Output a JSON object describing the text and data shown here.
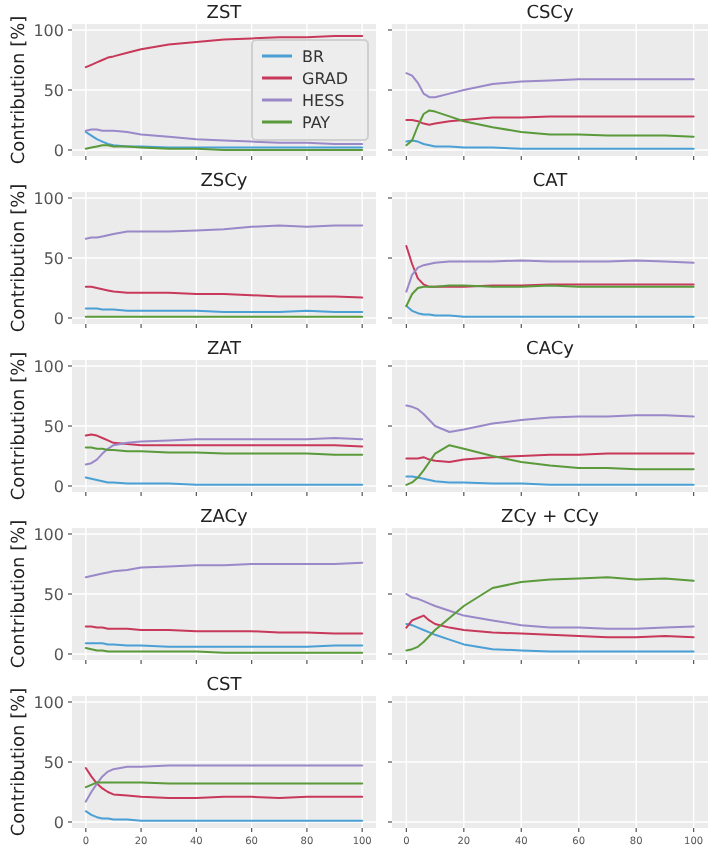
{
  "chart_data": [
    {
      "type": "line",
      "title": "ZST",
      "ylabel": "Contribution [%]",
      "x": [
        0,
        2,
        4,
        6,
        8,
        10,
        15,
        20,
        30,
        40,
        50,
        60,
        70,
        80,
        90,
        100
      ],
      "xlim": [
        -5,
        105
      ],
      "ylim": [
        -5,
        105
      ],
      "xticks": [
        0,
        20,
        40,
        60,
        80,
        100
      ],
      "yticks": [
        0,
        50,
        100
      ],
      "grid": true,
      "legend": "right",
      "tick_labels": "y",
      "series": [
        {
          "name": "BR",
          "color": "#4a9fd5",
          "values": [
            15,
            12,
            9,
            7,
            5,
            4,
            3,
            3,
            2,
            2,
            2,
            2,
            2,
            2,
            2,
            2
          ]
        },
        {
          "name": "GRAD",
          "color": "#c8385a",
          "values": [
            69,
            71,
            73,
            75,
            77,
            78,
            81,
            84,
            88,
            90,
            92,
            93,
            94,
            94,
            95,
            95
          ]
        },
        {
          "name": "HESS",
          "color": "#9a88c8",
          "values": [
            16,
            17,
            17,
            16,
            16,
            16,
            15,
            13,
            11,
            9,
            8,
            7,
            6,
            6,
            5,
            5
          ]
        },
        {
          "name": "PAY",
          "color": "#5a9a3a",
          "values": [
            1,
            2,
            3,
            4,
            4,
            3,
            3,
            2,
            1,
            1,
            0,
            0,
            0,
            0,
            0,
            0
          ]
        }
      ]
    },
    {
      "type": "line",
      "title": "CSCy",
      "x": [
        0,
        2,
        4,
        6,
        8,
        10,
        15,
        20,
        30,
        40,
        50,
        60,
        70,
        80,
        90,
        100
      ],
      "xlim": [
        -5,
        105
      ],
      "ylim": [
        -5,
        105
      ],
      "xticks": [
        0,
        20,
        40,
        60,
        80,
        100
      ],
      "yticks": [
        0,
        50,
        100
      ],
      "grid": true,
      "tick_labels": false,
      "series": [
        {
          "color": "#4a9fd5",
          "values": [
            7,
            8,
            7,
            5,
            4,
            3,
            3,
            2,
            2,
            1,
            1,
            1,
            1,
            1,
            1,
            1
          ]
        },
        {
          "color": "#c8385a",
          "values": [
            25,
            25,
            24,
            22,
            21,
            22,
            24,
            25,
            27,
            27,
            28,
            28,
            28,
            28,
            28,
            28
          ]
        },
        {
          "color": "#9a88c8",
          "values": [
            64,
            62,
            56,
            47,
            44,
            44,
            47,
            50,
            55,
            57,
            58,
            59,
            59,
            59,
            59,
            59
          ]
        },
        {
          "color": "#5a9a3a",
          "values": [
            4,
            8,
            20,
            30,
            33,
            32,
            28,
            24,
            19,
            15,
            13,
            13,
            12,
            12,
            12,
            11
          ]
        }
      ]
    },
    {
      "type": "line",
      "title": "ZSCy",
      "ylabel": "Contribution [%]",
      "x": [
        0,
        2,
        4,
        6,
        8,
        10,
        15,
        20,
        30,
        40,
        50,
        60,
        70,
        80,
        90,
        100
      ],
      "xlim": [
        -5,
        105
      ],
      "ylim": [
        -5,
        105
      ],
      "xticks": [
        0,
        20,
        40,
        60,
        80,
        100
      ],
      "yticks": [
        0,
        50,
        100
      ],
      "grid": true,
      "tick_labels": "y",
      "series": [
        {
          "color": "#4a9fd5",
          "values": [
            8,
            8,
            8,
            7,
            7,
            7,
            6,
            6,
            6,
            6,
            5,
            5,
            5,
            6,
            5,
            5
          ]
        },
        {
          "color": "#c8385a",
          "values": [
            26,
            26,
            25,
            24,
            23,
            22,
            21,
            21,
            21,
            20,
            20,
            19,
            18,
            18,
            18,
            17
          ]
        },
        {
          "color": "#9a88c8",
          "values": [
            66,
            67,
            67,
            68,
            69,
            70,
            72,
            72,
            72,
            73,
            74,
            76,
            77,
            76,
            77,
            77
          ]
        },
        {
          "color": "#5a9a3a",
          "values": [
            1,
            1,
            1,
            1,
            1,
            1,
            1,
            1,
            1,
            1,
            1,
            1,
            1,
            1,
            1,
            1
          ]
        }
      ]
    },
    {
      "type": "line",
      "title": "CAT",
      "x": [
        0,
        2,
        4,
        6,
        8,
        10,
        15,
        20,
        30,
        40,
        50,
        60,
        70,
        80,
        90,
        100
      ],
      "xlim": [
        -5,
        105
      ],
      "ylim": [
        -5,
        105
      ],
      "xticks": [
        0,
        20,
        40,
        60,
        80,
        100
      ],
      "yticks": [
        0,
        50,
        100
      ],
      "grid": true,
      "tick_labels": false,
      "series": [
        {
          "color": "#4a9fd5",
          "values": [
            10,
            6,
            4,
            3,
            3,
            2,
            2,
            1,
            1,
            1,
            1,
            1,
            1,
            1,
            1,
            1
          ]
        },
        {
          "color": "#c8385a",
          "values": [
            60,
            45,
            33,
            28,
            26,
            26,
            26,
            26,
            27,
            27,
            28,
            28,
            28,
            28,
            28,
            28
          ]
        },
        {
          "color": "#9a88c8",
          "values": [
            22,
            36,
            42,
            44,
            45,
            46,
            47,
            47,
            47,
            48,
            47,
            47,
            47,
            48,
            47,
            46
          ]
        },
        {
          "color": "#5a9a3a",
          "values": [
            10,
            20,
            25,
            26,
            26,
            26,
            27,
            27,
            26,
            26,
            27,
            26,
            26,
            26,
            26,
            26
          ]
        }
      ]
    },
    {
      "type": "line",
      "title": "ZAT",
      "ylabel": "Contribution [%]",
      "x": [
        0,
        2,
        4,
        6,
        8,
        10,
        15,
        20,
        30,
        40,
        50,
        60,
        70,
        80,
        90,
        100
      ],
      "xlim": [
        -5,
        105
      ],
      "ylim": [
        -5,
        105
      ],
      "xticks": [
        0,
        20,
        40,
        60,
        80,
        100
      ],
      "yticks": [
        0,
        50,
        100
      ],
      "grid": true,
      "tick_labels": "y",
      "series": [
        {
          "color": "#4a9fd5",
          "values": [
            7,
            6,
            5,
            4,
            3,
            3,
            2,
            2,
            2,
            1,
            1,
            1,
            1,
            1,
            1,
            1
          ]
        },
        {
          "color": "#c8385a",
          "values": [
            42,
            43,
            42,
            40,
            38,
            36,
            35,
            34,
            34,
            34,
            34,
            34,
            34,
            34,
            34,
            33
          ]
        },
        {
          "color": "#9a88c8",
          "values": [
            18,
            19,
            22,
            27,
            31,
            34,
            36,
            37,
            38,
            39,
            39,
            39,
            39,
            39,
            40,
            39
          ]
        },
        {
          "color": "#5a9a3a",
          "values": [
            32,
            32,
            31,
            31,
            30,
            30,
            29,
            29,
            28,
            28,
            27,
            27,
            27,
            27,
            26,
            26
          ]
        }
      ]
    },
    {
      "type": "line",
      "title": "CACy",
      "x": [
        0,
        2,
        4,
        6,
        8,
        10,
        15,
        20,
        30,
        40,
        50,
        60,
        70,
        80,
        90,
        100
      ],
      "xlim": [
        -5,
        105
      ],
      "ylim": [
        -5,
        105
      ],
      "xticks": [
        0,
        20,
        40,
        60,
        80,
        100
      ],
      "yticks": [
        0,
        50,
        100
      ],
      "grid": true,
      "tick_labels": false,
      "series": [
        {
          "color": "#4a9fd5",
          "values": [
            8,
            8,
            7,
            6,
            5,
            4,
            3,
            3,
            2,
            2,
            1,
            1,
            1,
            1,
            1,
            1
          ]
        },
        {
          "color": "#c8385a",
          "values": [
            23,
            23,
            23,
            24,
            22,
            21,
            20,
            22,
            24,
            25,
            26,
            26,
            27,
            27,
            27,
            27
          ]
        },
        {
          "color": "#9a88c8",
          "values": [
            67,
            66,
            64,
            60,
            55,
            50,
            45,
            47,
            52,
            55,
            57,
            58,
            58,
            59,
            59,
            58
          ]
        },
        {
          "color": "#5a9a3a",
          "values": [
            1,
            3,
            7,
            13,
            20,
            27,
            34,
            31,
            25,
            20,
            17,
            15,
            15,
            14,
            14,
            14
          ]
        }
      ]
    },
    {
      "type": "line",
      "title": "ZACy",
      "ylabel": "Contribution [%]",
      "x": [
        0,
        2,
        4,
        6,
        8,
        10,
        15,
        20,
        30,
        40,
        50,
        60,
        70,
        80,
        90,
        100
      ],
      "xlim": [
        -5,
        105
      ],
      "ylim": [
        -5,
        105
      ],
      "xticks": [
        0,
        20,
        40,
        60,
        80,
        100
      ],
      "yticks": [
        0,
        50,
        100
      ],
      "grid": true,
      "tick_labels": "y",
      "series": [
        {
          "color": "#4a9fd5",
          "values": [
            9,
            9,
            9,
            9,
            8,
            8,
            7,
            7,
            6,
            6,
            6,
            6,
            6,
            6,
            7,
            7
          ]
        },
        {
          "color": "#c8385a",
          "values": [
            23,
            23,
            22,
            22,
            21,
            21,
            21,
            20,
            20,
            19,
            19,
            19,
            18,
            18,
            17,
            17
          ]
        },
        {
          "color": "#9a88c8",
          "values": [
            64,
            65,
            66,
            67,
            68,
            69,
            70,
            72,
            73,
            74,
            74,
            75,
            75,
            75,
            75,
            76
          ]
        },
        {
          "color": "#5a9a3a",
          "values": [
            5,
            4,
            3,
            3,
            2,
            2,
            2,
            2,
            2,
            2,
            1,
            1,
            1,
            1,
            1,
            1
          ]
        }
      ]
    },
    {
      "type": "line",
      "title": "ZCy + CCy",
      "x": [
        0,
        2,
        4,
        6,
        8,
        10,
        15,
        20,
        30,
        40,
        50,
        60,
        70,
        80,
        90,
        100
      ],
      "xlim": [
        -5,
        105
      ],
      "ylim": [
        -5,
        105
      ],
      "xticks": [
        0,
        20,
        40,
        60,
        80,
        100
      ],
      "yticks": [
        0,
        50,
        100
      ],
      "grid": true,
      "tick_labels": false,
      "series": [
        {
          "color": "#4a9fd5",
          "values": [
            25,
            24,
            22,
            20,
            18,
            16,
            12,
            8,
            4,
            3,
            2,
            2,
            2,
            2,
            2,
            2
          ]
        },
        {
          "color": "#c8385a",
          "values": [
            22,
            28,
            30,
            32,
            28,
            25,
            22,
            20,
            18,
            17,
            16,
            15,
            14,
            14,
            15,
            14
          ]
        },
        {
          "color": "#9a88c8",
          "values": [
            50,
            47,
            46,
            44,
            42,
            40,
            36,
            32,
            28,
            24,
            22,
            22,
            21,
            21,
            22,
            23
          ]
        },
        {
          "color": "#5a9a3a",
          "values": [
            3,
            4,
            6,
            10,
            15,
            20,
            30,
            40,
            55,
            60,
            62,
            63,
            64,
            62,
            63,
            61
          ]
        }
      ]
    },
    {
      "type": "line",
      "title": "CST",
      "ylabel": "Contribution [%]",
      "x": [
        0,
        2,
        4,
        6,
        8,
        10,
        15,
        20,
        30,
        40,
        50,
        60,
        70,
        80,
        90,
        100
      ],
      "xlim": [
        -5,
        105
      ],
      "ylim": [
        -5,
        105
      ],
      "xticks": [
        0,
        20,
        40,
        60,
        80,
        100
      ],
      "yticks": [
        0,
        50,
        100
      ],
      "grid": true,
      "series": [
        {
          "color": "#4a9fd5",
          "values": [
            9,
            6,
            4,
            3,
            3,
            2,
            2,
            1,
            1,
            1,
            1,
            1,
            1,
            1,
            1,
            1
          ]
        },
        {
          "color": "#c8385a",
          "values": [
            45,
            38,
            32,
            28,
            25,
            23,
            22,
            21,
            20,
            20,
            21,
            21,
            20,
            21,
            21,
            21
          ]
        },
        {
          "color": "#9a88c8",
          "values": [
            17,
            25,
            32,
            38,
            42,
            44,
            46,
            46,
            47,
            47,
            47,
            47,
            47,
            47,
            47,
            47
          ]
        },
        {
          "color": "#5a9a3a",
          "values": [
            29,
            31,
            33,
            33,
            33,
            33,
            33,
            33,
            32,
            32,
            32,
            32,
            32,
            32,
            32,
            32
          ]
        }
      ]
    },
    {
      "type": "line",
      "xlim": [
        -5,
        105
      ],
      "ylim": [
        -5,
        105
      ],
      "xticks": [
        0,
        20,
        40,
        60,
        80,
        100
      ],
      "yticks": [
        0,
        50,
        100
      ],
      "grid": true,
      "tick_labels": "x"
    }
  ]
}
